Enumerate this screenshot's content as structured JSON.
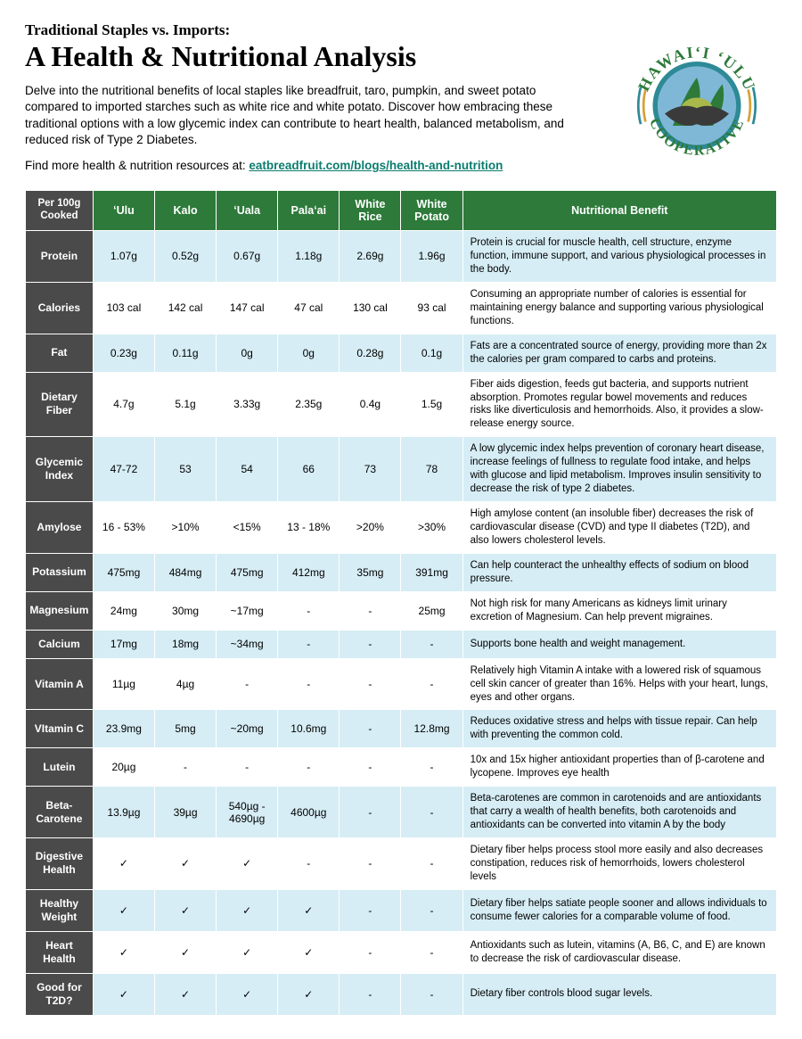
{
  "eyebrow": "Traditional Staples vs. Imports:",
  "title": "A Health & Nutritional Analysis",
  "intro": "Delve into the nutritional benefits of local staples like breadfruit, taro, pumpkin, and sweet potato compared to imported starches such as white rice and white potato. Discover how embracing these traditional options with a low glycemic index can contribute to heart health, balanced metabolism, and reduced risk of Type 2 Diabetes.",
  "link_prefix": "Find more health & nutrition resources at: ",
  "link_text": "eatbreadfruit.com/blogs/health-and-nutrition",
  "logo": {
    "top_text": "HAWAIʻI ʻULU",
    "bottom_text": "COOPERATIVE",
    "ring_color": "#2d8a96",
    "text_color": "#2d7a3a",
    "accent_color": "#d9a036",
    "leaf_color": "#2d7a3a",
    "globe_color": "#7fb8d6",
    "hand_color": "#3a3a3a",
    "fruit_color": "#a8b84a"
  },
  "colors": {
    "header_green": "#2d7a3a",
    "row_label_gray": "#4a4a4a",
    "row_odd_bg": "#d6edf5",
    "row_even_bg": "#ffffff",
    "border": "#ffffff",
    "link": "#0a7d6e"
  },
  "table": {
    "corner_label": "Per 100g Cooked",
    "columns": [
      "ʻUlu",
      "Kalo",
      "ʻUala",
      "Palaʻai",
      "White Rice",
      "White Potato",
      "Nutritional Benefit"
    ],
    "rows": [
      {
        "label": "Protein",
        "vals": [
          "1.07g",
          "0.52g",
          "0.67g",
          "1.18g",
          "2.69g",
          "1.96g"
        ],
        "benefit": "Protein is crucial for muscle health, cell structure, enzyme function, immune support, and various physiological processes in the body."
      },
      {
        "label": "Calories",
        "vals": [
          "103 cal",
          "142 cal",
          "147 cal",
          "47 cal",
          "130 cal",
          "93 cal"
        ],
        "benefit": "Consuming an appropriate number of calories is essential for maintaining energy balance and supporting various physiological functions."
      },
      {
        "label": "Fat",
        "vals": [
          "0.23g",
          "0.11g",
          "0g",
          "0g",
          "0.28g",
          "0.1g"
        ],
        "benefit": "Fats are a concentrated source of energy, providing more than 2x the calories per gram compared to carbs and proteins."
      },
      {
        "label": "Dietary Fiber",
        "vals": [
          "4.7g",
          "5.1g",
          "3.33g",
          "2.35g",
          "0.4g",
          "1.5g"
        ],
        "benefit": "Fiber aids digestion, feeds gut bacteria, and supports nutrient absorption. Promotes regular bowel movements and reduces risks like diverticulosis and hemorrhoids. Also, it provides a slow-release energy source."
      },
      {
        "label": "Glycemic Index",
        "vals": [
          "47-72",
          "53",
          "54",
          "66",
          "73",
          "78"
        ],
        "benefit": "A low glycemic index helps prevention of coronary heart disease, increase feelings of fullness to regulate food intake, and helps with glucose and lipid metabolism. Improves insulin sensitivity to decrease the risk of type 2 diabetes."
      },
      {
        "label": "Amylose",
        "vals": [
          "16 - 53%",
          ">10%",
          "<15%",
          "13 - 18%",
          ">20%",
          ">30%"
        ],
        "benefit": "High amylose content (an insoluble fiber) decreases the risk of cardiovascular disease (CVD) and type II diabetes (T2D), and also lowers cholesterol levels."
      },
      {
        "label": "Potassium",
        "vals": [
          "475mg",
          "484mg",
          "475mg",
          "412mg",
          "35mg",
          "391mg"
        ],
        "benefit": "Can help counteract the unhealthy effects of sodium on blood pressure."
      },
      {
        "label": "Magnesium",
        "vals": [
          "24mg",
          "30mg",
          "~17mg",
          "-",
          "-",
          "25mg"
        ],
        "benefit": "Not high risk for many Americans as kidneys limit urinary excretion of Magnesium. Can help prevent migraines."
      },
      {
        "label": "Calcium",
        "vals": [
          "17mg",
          "18mg",
          "~34mg",
          "-",
          "-",
          "-"
        ],
        "benefit": "Supports bone health and weight management."
      },
      {
        "label": "Vitamin A",
        "vals": [
          "11µg",
          "4µg",
          "-",
          "-",
          "-",
          "-"
        ],
        "benefit": "Relatively high Vitamin A intake with a lowered risk of squamous cell skin cancer of greater than 16%. Helps with your heart, lungs, eyes and other organs."
      },
      {
        "label": "VItamin C",
        "vals": [
          "23.9mg",
          "5mg",
          "~20mg",
          "10.6mg",
          "-",
          "12.8mg"
        ],
        "benefit": "Reduces oxidative stress and helps with tissue repair. Can help with preventing the common cold."
      },
      {
        "label": "Lutein",
        "vals": [
          "20µg",
          "-",
          "-",
          "-",
          "-",
          "-"
        ],
        "benefit": "10x and 15x higher antioxidant properties than of β-carotene and lycopene. Improves eye health"
      },
      {
        "label": "Beta-Carotene",
        "vals": [
          "13.9µg",
          "39µg",
          "540µg - 4690µg",
          "4600µg",
          "-",
          "-"
        ],
        "benefit": "Beta-carotenes are common in carotenoids and are antioxidants that carry a wealth of health benefits, both carotenoids and antioxidants can be converted into vitamin A by the body"
      },
      {
        "label": "Digestive Health",
        "vals": [
          "✓",
          "✓",
          "✓",
          "-",
          "-",
          "-"
        ],
        "benefit": "Dietary fiber helps process stool more easily and also decreases constipation, reduces risk of hemorrhoids, lowers cholesterol levels"
      },
      {
        "label": "Healthy Weight",
        "vals": [
          "✓",
          "✓",
          "✓",
          "✓",
          "-",
          "-"
        ],
        "benefit": "Dietary fiber helps satiate people sooner and allows individuals to consume fewer calories for a comparable volume of food."
      },
      {
        "label": "Heart Health",
        "vals": [
          "✓",
          "✓",
          "✓",
          "✓",
          "-",
          "-"
        ],
        "benefit": "Antioxidants such as lutein, vitamins (A, B6, C, and E) are known to decrease the risk of cardiovascular disease."
      },
      {
        "label": "Good for T2D?",
        "vals": [
          "✓",
          "✓",
          "✓",
          "✓",
          "-",
          "-"
        ],
        "benefit": "Dietary fiber controls blood sugar levels."
      }
    ]
  }
}
